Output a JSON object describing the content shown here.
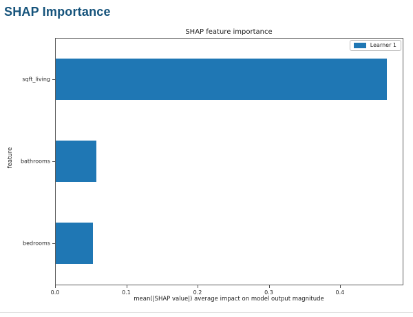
{
  "page": {
    "title": "SHAP Importance"
  },
  "chart_data": {
    "type": "bar",
    "orientation": "horizontal",
    "title": "SHAP feature importance",
    "categories": [
      "sqft_living",
      "bathrooms",
      "bedrooms"
    ],
    "values": [
      0.465,
      0.057,
      0.052
    ],
    "xlabel": "mean(|SHAP value|) average impact on model output magnitude",
    "ylabel": "feature",
    "xticks": [
      0.0,
      0.1,
      0.2,
      0.3,
      0.4
    ],
    "xtick_labels": [
      "0.0",
      "0.1",
      "0.2",
      "0.3",
      "0.4"
    ],
    "xlim": [
      0,
      0.488
    ],
    "bar_height_fraction": 0.5,
    "grid": false,
    "legend": {
      "position": "upper right",
      "entries": [
        {
          "label": "Learner 1",
          "color": "#1f77b4"
        }
      ]
    }
  },
  "colors": {
    "heading": "#15537b",
    "bar": "#1f77b4",
    "spine": "#5a5a5a",
    "text": "#262626",
    "legend_border": "#b9b9b9",
    "divider": "#e2e2e2"
  }
}
